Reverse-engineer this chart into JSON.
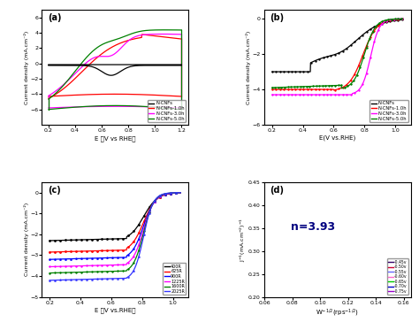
{
  "panel_a": {
    "label": "(a)",
    "xlabel": "E （V vs RHE）",
    "ylabel": "Current density (mA.cm⁻²)",
    "xlim": [
      0.15,
      1.25
    ],
    "ylim": [
      -8,
      7
    ],
    "xticks": [
      0.2,
      0.4,
      0.6,
      0.8,
      1.0,
      1.2
    ],
    "yticks": [
      -6,
      -4,
      -2,
      0,
      2,
      4,
      6
    ],
    "series": [
      {
        "label": "N-CNFs",
        "color": "black"
      },
      {
        "label": "N-CNFs-1.0h",
        "color": "red"
      },
      {
        "label": "N-CNFs-3.0h",
        "color": "magenta"
      },
      {
        "label": "N-CNFs-5.0h",
        "color": "green"
      }
    ]
  },
  "panel_b": {
    "label": "(b)",
    "xlabel": "E(V vs.RHE)",
    "ylabel": "Current density (mA.cm⁻²)",
    "xlim": [
      0.15,
      1.1
    ],
    "ylim": [
      -6,
      0.5
    ],
    "xticks": [
      0.2,
      0.4,
      0.6,
      0.8,
      1.0
    ],
    "yticks": [
      -6,
      -4,
      -2,
      0
    ],
    "series": [
      {
        "label": "N-CNFs",
        "color": "black"
      },
      {
        "label": "N-CNFs-1.0h",
        "color": "red"
      },
      {
        "label": "N-CNFs-3.0h",
        "color": "magenta"
      },
      {
        "label": "N-CNFs-5.0h",
        "color": "green"
      }
    ]
  },
  "panel_c": {
    "label": "(c)",
    "xlabel": "E （V vs.RHE）",
    "ylabel": "Current density (mA.cm⁻²)",
    "xlim": [
      0.15,
      1.1
    ],
    "ylim": [
      -5,
      0.5
    ],
    "xticks": [
      0.2,
      0.4,
      0.6,
      0.8,
      1.0
    ],
    "yticks": [
      -5,
      -4,
      -3,
      -2,
      -1,
      0
    ],
    "series": [
      {
        "label": "400R",
        "color": "black"
      },
      {
        "label": "625R",
        "color": "red"
      },
      {
        "label": "900R",
        "color": "blue"
      },
      {
        "label": "1225R",
        "color": "magenta"
      },
      {
        "label": "1600R",
        "color": "green"
      },
      {
        "label": "2025R",
        "color": "#3333ff"
      }
    ]
  },
  "panel_d": {
    "label": "(d)",
    "xlabel": "W⁻¹²₍ᵣᵖₛ⁻¹²₎",
    "ylabel": "J⁻¹₍mA.cm⁻²₎⁻¹",
    "xlim": [
      0.06,
      0.165
    ],
    "ylim": [
      0.2,
      0.45
    ],
    "xticks": [
      0.06,
      0.08,
      0.1,
      0.12,
      0.14,
      0.16
    ],
    "yticks": [
      0.2,
      0.25,
      0.3,
      0.35,
      0.4,
      0.45
    ],
    "annotation": "n=3.93",
    "series": [
      {
        "label": "-0.45v",
        "color": "#330066"
      },
      {
        "label": "-0.50v",
        "color": "#cc0033"
      },
      {
        "label": "-0.55v",
        "color": "#6666ff"
      },
      {
        "label": "-0.60v",
        "color": "#ff66cc"
      },
      {
        "label": "-0.65v",
        "color": "#00cc00"
      },
      {
        "label": "-0.70v",
        "color": "#0000cc"
      },
      {
        "label": "-0.75v",
        "color": "#9900cc"
      }
    ]
  }
}
